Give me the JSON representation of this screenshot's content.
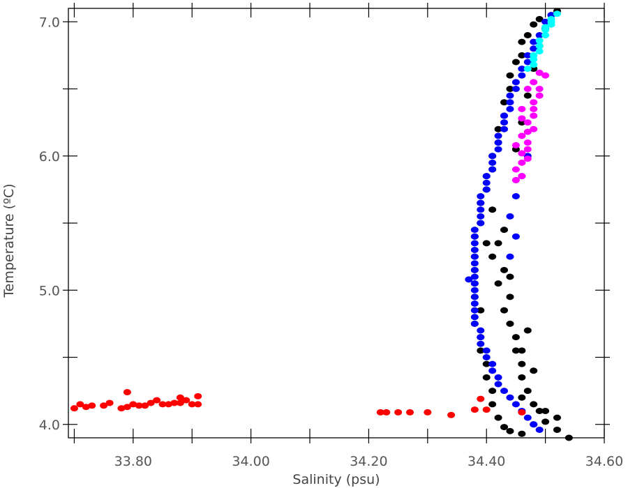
{
  "chart_data": {
    "type": "scatter",
    "title": "",
    "xlabel": "Salinity (psu)",
    "ylabel": "Temperature (ºC)",
    "xlim": [
      33.69,
      34.6
    ],
    "ylim": [
      3.9,
      7.1
    ],
    "x_ticks": [
      "33.80",
      "34.00",
      "34.20",
      "34.40",
      "34.60"
    ],
    "x_tick_values": [
      33.8,
      34.0,
      34.2,
      34.4,
      34.6
    ],
    "y_ticks": [
      "4.0",
      "5.0",
      "6.0",
      "7.0"
    ],
    "y_tick_values": [
      4.0,
      5.0,
      6.0,
      7.0
    ],
    "grid": false,
    "series": [
      {
        "color": "#000000",
        "points": [
          [
            34.52,
            7.08
          ],
          [
            34.51,
            7.05
          ],
          [
            34.49,
            7.02
          ],
          [
            34.48,
            6.98
          ],
          [
            34.5,
            6.95
          ],
          [
            34.47,
            6.9
          ],
          [
            34.46,
            6.85
          ],
          [
            34.49,
            6.82
          ],
          [
            34.46,
            6.75
          ],
          [
            34.45,
            6.7
          ],
          [
            34.48,
            6.65
          ],
          [
            34.44,
            6.6
          ],
          [
            34.44,
            6.5
          ],
          [
            34.47,
            6.45
          ],
          [
            34.43,
            6.4
          ],
          [
            34.43,
            6.3
          ],
          [
            34.46,
            6.25
          ],
          [
            34.42,
            6.2
          ],
          [
            34.42,
            6.1
          ],
          [
            34.45,
            6.05
          ],
          [
            34.41,
            6.0
          ],
          [
            34.41,
            5.9
          ],
          [
            34.4,
            5.85
          ],
          [
            34.4,
            5.75
          ],
          [
            34.39,
            5.65
          ],
          [
            34.41,
            5.6
          ],
          [
            34.39,
            5.5
          ],
          [
            34.38,
            5.4
          ],
          [
            34.4,
            5.35
          ],
          [
            34.38,
            5.25
          ],
          [
            34.38,
            5.15
          ],
          [
            34.38,
            5.05
          ],
          [
            34.38,
            4.95
          ],
          [
            34.39,
            4.85
          ],
          [
            34.38,
            4.75
          ],
          [
            34.39,
            4.65
          ],
          [
            34.39,
            4.55
          ],
          [
            34.4,
            4.45
          ],
          [
            34.4,
            4.35
          ],
          [
            34.41,
            4.25
          ],
          [
            34.41,
            4.15
          ],
          [
            34.42,
            4.05
          ],
          [
            34.43,
            3.98
          ],
          [
            34.44,
            3.95
          ],
          [
            34.46,
            3.93
          ],
          [
            34.48,
            4.0
          ],
          [
            34.5,
            4.02
          ],
          [
            34.52,
            3.96
          ],
          [
            34.54,
            3.9
          ],
          [
            34.52,
            4.05
          ],
          [
            34.5,
            4.1
          ],
          [
            34.48,
            4.15
          ],
          [
            34.47,
            4.25
          ],
          [
            34.46,
            4.35
          ],
          [
            34.46,
            4.45
          ],
          [
            34.45,
            4.55
          ],
          [
            34.45,
            4.65
          ],
          [
            34.44,
            4.75
          ],
          [
            34.43,
            4.85
          ],
          [
            34.44,
            4.95
          ],
          [
            34.42,
            5.05
          ],
          [
            34.43,
            5.15
          ],
          [
            34.41,
            5.25
          ],
          [
            34.42,
            5.35
          ],
          [
            34.43,
            5.45
          ],
          [
            34.47,
            4.7
          ],
          [
            34.46,
            4.55
          ],
          [
            34.48,
            4.4
          ],
          [
            34.46,
            4.2
          ],
          [
            34.49,
            4.1
          ],
          [
            34.44,
            5.1
          ]
        ]
      },
      {
        "color": "#0000ff",
        "points": [
          [
            34.51,
            7.05
          ],
          [
            34.5,
            7.0
          ],
          [
            34.5,
            6.95
          ],
          [
            34.49,
            6.9
          ],
          [
            34.48,
            6.85
          ],
          [
            34.48,
            6.8
          ],
          [
            34.47,
            6.75
          ],
          [
            34.47,
            6.7
          ],
          [
            34.46,
            6.65
          ],
          [
            34.46,
            6.6
          ],
          [
            34.45,
            6.55
          ],
          [
            34.45,
            6.5
          ],
          [
            34.44,
            6.45
          ],
          [
            34.44,
            6.4
          ],
          [
            34.44,
            6.35
          ],
          [
            34.43,
            6.3
          ],
          [
            34.43,
            6.25
          ],
          [
            34.43,
            6.2
          ],
          [
            34.42,
            6.15
          ],
          [
            34.42,
            6.1
          ],
          [
            34.42,
            6.05
          ],
          [
            34.41,
            6.0
          ],
          [
            34.41,
            5.95
          ],
          [
            34.41,
            5.9
          ],
          [
            34.4,
            5.85
          ],
          [
            34.4,
            5.8
          ],
          [
            34.4,
            5.75
          ],
          [
            34.39,
            5.7
          ],
          [
            34.39,
            5.65
          ],
          [
            34.39,
            5.6
          ],
          [
            34.39,
            5.55
          ],
          [
            34.39,
            5.5
          ],
          [
            34.38,
            5.45
          ],
          [
            34.38,
            5.4
          ],
          [
            34.38,
            5.35
          ],
          [
            34.38,
            5.3
          ],
          [
            34.38,
            5.25
          ],
          [
            34.38,
            5.2
          ],
          [
            34.38,
            5.15
          ],
          [
            34.38,
            5.1
          ],
          [
            34.38,
            5.05
          ],
          [
            34.38,
            5.0
          ],
          [
            34.38,
            4.95
          ],
          [
            34.38,
            4.9
          ],
          [
            34.38,
            4.85
          ],
          [
            34.38,
            4.8
          ],
          [
            34.38,
            4.75
          ],
          [
            34.39,
            4.7
          ],
          [
            34.39,
            4.65
          ],
          [
            34.39,
            4.6
          ],
          [
            34.4,
            4.55
          ],
          [
            34.4,
            4.5
          ],
          [
            34.41,
            4.45
          ],
          [
            34.41,
            4.4
          ],
          [
            34.42,
            4.35
          ],
          [
            34.42,
            4.3
          ],
          [
            34.43,
            4.25
          ],
          [
            34.44,
            4.2
          ],
          [
            34.45,
            4.15
          ],
          [
            34.46,
            4.1
          ],
          [
            34.47,
            4.05
          ],
          [
            34.48,
            4.0
          ],
          [
            34.49,
            3.96
          ],
          [
            34.37,
            5.08
          ],
          [
            34.44,
            5.55
          ],
          [
            34.45,
            5.7
          ],
          [
            34.46,
            5.85
          ],
          [
            34.47,
            6.0
          ],
          [
            34.45,
            5.4
          ],
          [
            34.44,
            5.25
          ]
        ]
      },
      {
        "color": "#ff00ff",
        "points": [
          [
            34.49,
            6.62
          ],
          [
            34.5,
            6.6
          ],
          [
            34.48,
            6.55
          ],
          [
            34.47,
            6.5
          ],
          [
            34.49,
            6.45
          ],
          [
            34.48,
            6.4
          ],
          [
            34.46,
            6.35
          ],
          [
            34.48,
            6.3
          ],
          [
            34.47,
            6.25
          ],
          [
            34.48,
            6.2
          ],
          [
            34.46,
            6.15
          ],
          [
            34.47,
            6.1
          ],
          [
            34.45,
            6.08
          ],
          [
            34.46,
            6.02
          ],
          [
            34.47,
            5.98
          ],
          [
            34.46,
            5.95
          ],
          [
            34.45,
            5.9
          ],
          [
            34.46,
            5.85
          ],
          [
            34.45,
            5.82
          ],
          [
            34.47,
            6.18
          ],
          [
            34.46,
            6.28
          ],
          [
            34.48,
            6.35
          ],
          [
            34.49,
            6.5
          ],
          [
            34.47,
            6.05
          ]
        ]
      },
      {
        "color": "#00ffff",
        "points": [
          [
            34.52,
            7.06
          ],
          [
            34.51,
            7.02
          ],
          [
            34.51,
            6.98
          ],
          [
            34.5,
            6.94
          ],
          [
            34.5,
            6.9
          ],
          [
            34.49,
            6.86
          ],
          [
            34.49,
            6.82
          ],
          [
            34.49,
            6.78
          ],
          [
            34.48,
            6.75
          ],
          [
            34.48,
            6.72
          ],
          [
            34.48,
            6.68
          ],
          [
            34.47,
            6.65
          ],
          [
            34.5,
            6.96
          ],
          [
            34.51,
            7.0
          ]
        ]
      },
      {
        "color": "#ff0000",
        "points": [
          [
            33.7,
            4.12
          ],
          [
            33.71,
            4.15
          ],
          [
            33.72,
            4.13
          ],
          [
            33.73,
            4.14
          ],
          [
            33.75,
            4.14
          ],
          [
            33.76,
            4.16
          ],
          [
            33.78,
            4.12
          ],
          [
            33.79,
            4.13
          ],
          [
            33.79,
            4.24
          ],
          [
            33.8,
            4.15
          ],
          [
            33.81,
            4.14
          ],
          [
            33.82,
            4.14
          ],
          [
            33.83,
            4.16
          ],
          [
            33.84,
            4.18
          ],
          [
            33.85,
            4.15
          ],
          [
            33.86,
            4.15
          ],
          [
            33.87,
            4.16
          ],
          [
            33.88,
            4.2
          ],
          [
            33.88,
            4.16
          ],
          [
            33.89,
            4.18
          ],
          [
            33.9,
            4.15
          ],
          [
            33.91,
            4.21
          ],
          [
            33.91,
            4.15
          ],
          [
            34.22,
            4.09
          ],
          [
            34.23,
            4.09
          ],
          [
            34.25,
            4.09
          ],
          [
            34.27,
            4.09
          ],
          [
            34.3,
            4.09
          ],
          [
            34.34,
            4.07
          ],
          [
            34.38,
            4.11
          ],
          [
            34.39,
            4.19
          ],
          [
            34.4,
            4.11
          ],
          [
            34.46,
            4.09
          ]
        ]
      }
    ]
  }
}
